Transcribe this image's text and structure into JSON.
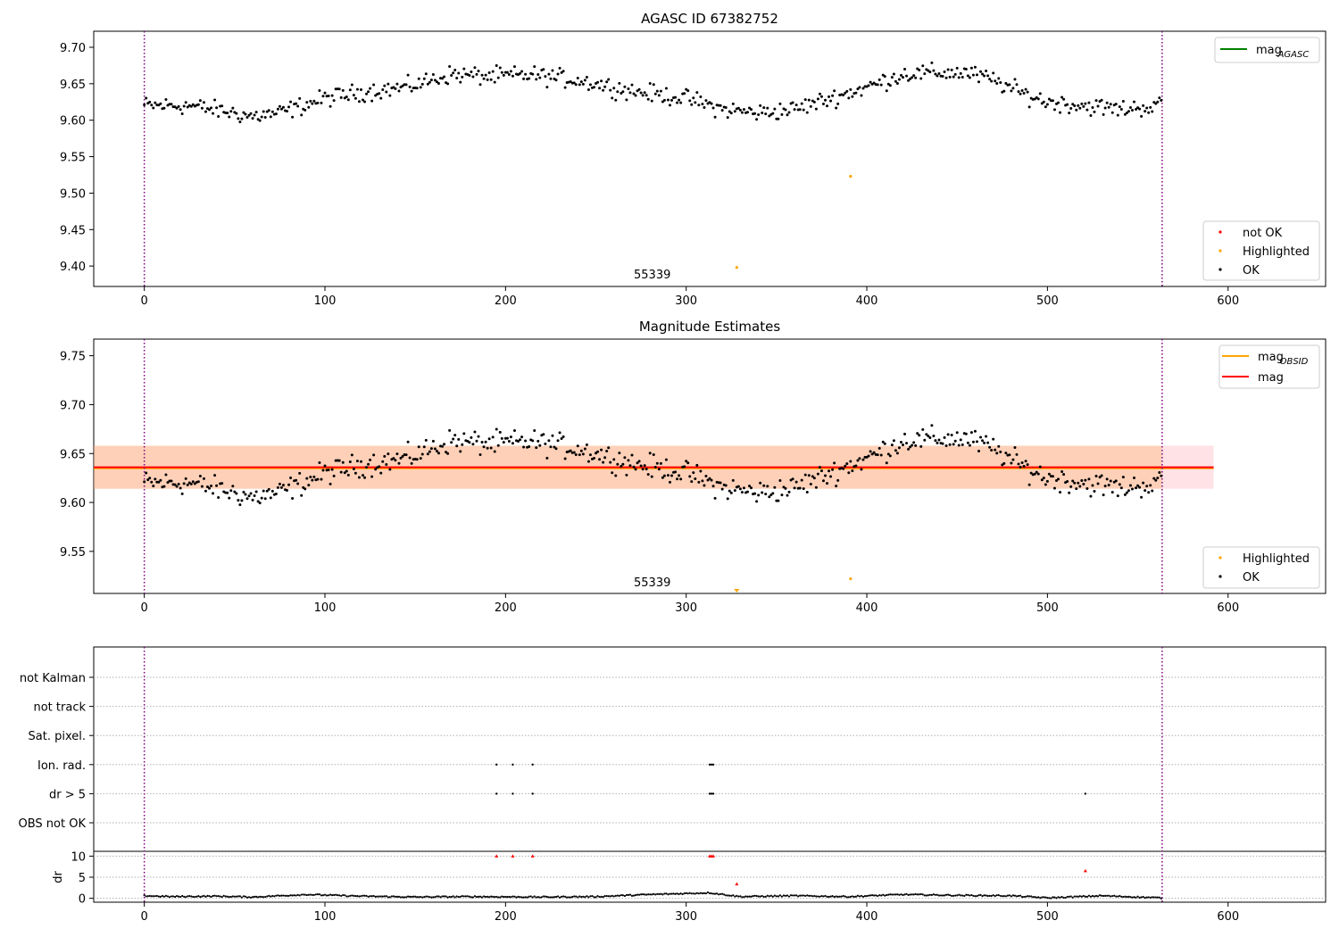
{
  "chart_data": [
    {
      "type": "scatter",
      "title": "AGASC ID 67382752",
      "xlabel": "",
      "ylabel": "",
      "xlim": [
        -28,
        654
      ],
      "ylim": [
        9.372,
        9.722
      ],
      "xticks": [
        0,
        100,
        200,
        300,
        400,
        500,
        600
      ],
      "yticks": [
        9.4,
        9.45,
        9.5,
        9.55,
        9.6,
        9.65,
        9.7
      ],
      "ytick_labels": [
        "9.40",
        "9.45",
        "9.50",
        "9.55",
        "9.60",
        "9.65",
        "9.70"
      ],
      "grid": false,
      "annotation": "55339",
      "annotation_pos": {
        "x": 280,
        "y": 9.38
      },
      "vlines": [
        {
          "x": 0,
          "color": "#7f0080",
          "style": "dotted"
        },
        {
          "x": 563.5,
          "color": "#7f0080",
          "style": "dotted"
        }
      ],
      "lines": [
        {
          "name": "mag_AGASC",
          "color": "#008000"
        }
      ],
      "legend_upper": {
        "placement": "top-right",
        "entries": [
          {
            "label": "mag",
            "sub": "AGASC",
            "color": "#008000",
            "kind": "line"
          }
        ]
      },
      "legend_lower": {
        "placement": "bottom-right",
        "entries": [
          {
            "label": "not OK",
            "color": "#ff0000",
            "kind": "dot"
          },
          {
            "label": "Highlighted",
            "color": "#ffa500",
            "kind": "dot"
          },
          {
            "label": "OK",
            "color": "#000000",
            "kind": "dot"
          }
        ]
      },
      "series": [
        {
          "name": "Highlighted",
          "color": "#ffa500",
          "points": [
            [
              328,
              9.398
            ],
            [
              391,
              9.523
            ]
          ]
        },
        {
          "name": "OK",
          "color": "#000000",
          "curve": [
            [
              0,
              9.62
            ],
            [
              25,
              9.62
            ],
            [
              45,
              9.612
            ],
            [
              60,
              9.605
            ],
            [
              75,
              9.61
            ],
            [
              100,
              9.63
            ],
            [
              125,
              9.64
            ],
            [
              145,
              9.645
            ],
            [
              170,
              9.663
            ],
            [
              190,
              9.66
            ],
            [
              215,
              9.662
            ],
            [
              240,
              9.655
            ],
            [
              270,
              9.64
            ],
            [
              300,
              9.63
            ],
            [
              320,
              9.615
            ],
            [
              340,
              9.61
            ],
            [
              360,
              9.615
            ],
            [
              380,
              9.63
            ],
            [
              400,
              9.645
            ],
            [
              420,
              9.663
            ],
            [
              440,
              9.665
            ],
            [
              455,
              9.665
            ],
            [
              470,
              9.655
            ],
            [
              485,
              9.638
            ],
            [
              500,
              9.625
            ],
            [
              520,
              9.62
            ],
            [
              540,
              9.615
            ],
            [
              563,
              9.62
            ]
          ]
        }
      ]
    },
    {
      "type": "scatter",
      "title": "Magnitude Estimates",
      "xlabel": "",
      "ylabel": "",
      "xlim": [
        -28,
        654
      ],
      "ylim": [
        9.507,
        9.767
      ],
      "xticks": [
        0,
        100,
        200,
        300,
        400,
        500,
        600
      ],
      "yticks": [
        9.55,
        9.6,
        9.65,
        9.7,
        9.75
      ],
      "ytick_labels": [
        "9.55",
        "9.60",
        "9.65",
        "9.70",
        "9.75"
      ],
      "grid": false,
      "annotation": "55339",
      "annotation_pos": {
        "x": 280,
        "y": 9.515
      },
      "vlines": [
        {
          "x": 0,
          "color": "#7f0080",
          "style": "dotted"
        },
        {
          "x": 563.5,
          "color": "#7f0080",
          "style": "dotted"
        }
      ],
      "hlines": [
        {
          "name": "mag_OBSID",
          "y": 9.635,
          "x0": -28,
          "x1": 592,
          "color": "#ffa500"
        },
        {
          "name": "mag",
          "y": 9.636,
          "x0": -28,
          "x1": 592,
          "color": "#ff0000"
        }
      ],
      "bands": [
        {
          "y0": 9.614,
          "y1": 9.658,
          "x0": -28,
          "x1": 592,
          "color": "#ff9eac",
          "opacity": 0.3
        },
        {
          "y0": 9.614,
          "y1": 9.658,
          "x0": -28,
          "x1": 563.5,
          "color": "#ffa040",
          "opacity": 0.28
        }
      ],
      "legend_upper": {
        "placement": "top-right",
        "entries": [
          {
            "label": "mag",
            "sub": "OBSID",
            "color": "#ffa500",
            "kind": "line"
          },
          {
            "label": "mag",
            "sub": "",
            "color": "#ff0000",
            "kind": "line"
          }
        ]
      },
      "legend_lower": {
        "placement": "bottom-right",
        "entries": [
          {
            "label": "Highlighted",
            "color": "#ffa500",
            "kind": "dot"
          },
          {
            "label": "OK",
            "color": "#000000",
            "kind": "dot"
          }
        ]
      },
      "series": [
        {
          "name": "Highlighted",
          "color": "#ffa500",
          "points": [
            [
              391,
              9.522
            ]
          ],
          "markers_off_axis": [
            [
              328,
              9.507
            ]
          ]
        },
        {
          "name": "OK",
          "color": "#000000",
          "curve": "same as AGASC panel OK series"
        }
      ]
    },
    {
      "type": "scatter",
      "title": "",
      "xlabel": "",
      "xlim": [
        -28,
        654
      ],
      "xticks": [
        0,
        100,
        200,
        300,
        400,
        500,
        600
      ],
      "vlines": [
        {
          "x": 0,
          "color": "#7f0080",
          "style": "dotted"
        },
        {
          "x": 563.5,
          "color": "#7f0080",
          "style": "dotted"
        }
      ],
      "flags": {
        "categories": [
          "not Kalman",
          "not track",
          "Sat. pixel.",
          "Ion. rad.",
          "dr > 5",
          "OBS not OK"
        ],
        "points": {
          "Ion. rad.": [
            195,
            204,
            215,
            313,
            314,
            315
          ],
          "dr > 5": [
            195,
            204,
            215,
            313,
            314,
            315,
            521
          ]
        }
      },
      "dr": {
        "ylabel": "dr",
        "ylim": [
          -0.5,
          10.5
        ],
        "yticks": [
          0,
          5,
          10
        ],
        "ytick_labels": [
          "0",
          "5",
          "10"
        ],
        "high_points": [
          [
            195,
            10
          ],
          [
            204,
            10
          ],
          [
            215,
            10
          ],
          [
            313,
            10
          ],
          [
            314,
            10
          ],
          [
            315,
            10
          ],
          [
            328,
            3.4
          ],
          [
            521,
            6.5
          ]
        ],
        "high_color": "#ff0000",
        "baseline_curve": [
          [
            0,
            0.6
          ],
          [
            15,
            0.4
          ],
          [
            40,
            0.5
          ],
          [
            60,
            0.3
          ],
          [
            90,
            0.9
          ],
          [
            120,
            0.5
          ],
          [
            150,
            0.3
          ],
          [
            180,
            0.4
          ],
          [
            220,
            0.3
          ],
          [
            250,
            0.4
          ],
          [
            280,
            0.9
          ],
          [
            313,
            1.3
          ],
          [
            330,
            0.4
          ],
          [
            360,
            0.6
          ],
          [
            390,
            0.4
          ],
          [
            420,
            0.9
          ],
          [
            450,
            0.7
          ],
          [
            480,
            0.6
          ],
          [
            500,
            0.1
          ],
          [
            530,
            0.6
          ],
          [
            563,
            0.1
          ]
        ]
      }
    }
  ]
}
